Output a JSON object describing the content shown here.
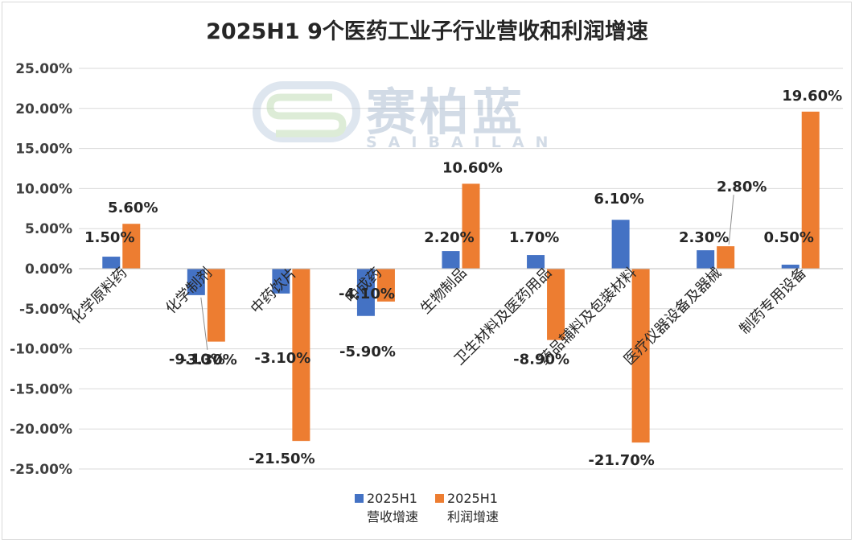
{
  "chart_data": {
    "type": "bar",
    "title": "2025H1 9个医药工业子行业营收和利润增速",
    "categories": [
      "化学原料药",
      "化学制剂",
      "中药饮片",
      "中成药",
      "生物制品",
      "卫生材料及医药用品",
      "药品辅料及包装材料",
      "医疗仪器设备及器械",
      "制药专用设备"
    ],
    "series": [
      {
        "name": "2025H1 营收增速",
        "legend_line1": "2025H1",
        "legend_line2": "营收增速",
        "color": "#4472c4",
        "values": [
          1.5,
          -3.3,
          -3.1,
          -5.9,
          2.2,
          1.7,
          6.1,
          2.3,
          0.5
        ],
        "labels": [
          "1.50%",
          "-3.30%",
          "-3.10%",
          "-5.90%",
          "2.20%",
          "1.70%",
          "6.10%",
          "2.30%",
          "0.50%"
        ]
      },
      {
        "name": "2025H1 利润增速",
        "legend_line1": "2025H1",
        "legend_line2": "利润增速",
        "color": "#ed7d31",
        "values": [
          5.6,
          -9.1,
          -21.5,
          -4.1,
          10.6,
          -8.9,
          -21.7,
          2.8,
          19.6
        ],
        "labels": [
          "5.60%",
          "-9.10%",
          "-21.50%",
          "-4.10%",
          "10.60%",
          "-8.90%",
          "-21.70%",
          "2.80%",
          "19.60%"
        ]
      }
    ],
    "ylim": [
      -25,
      25
    ],
    "yticks": [
      25,
      20,
      15,
      10,
      5,
      0,
      -5,
      -10,
      -15,
      -20,
      -25
    ],
    "ytick_labels": [
      "25.00%",
      "20.00%",
      "15.00%",
      "10.00%",
      "5.00%",
      "0.00%",
      "-5.00%",
      "-10.00%",
      "-15.00%",
      "-20.00%",
      "-25.00%"
    ],
    "xlabel": "",
    "ylabel": "",
    "legend_position": "bottom",
    "grid": true
  },
  "watermark": {
    "main": "赛柏蓝",
    "sub": "SAIBAILAN"
  }
}
